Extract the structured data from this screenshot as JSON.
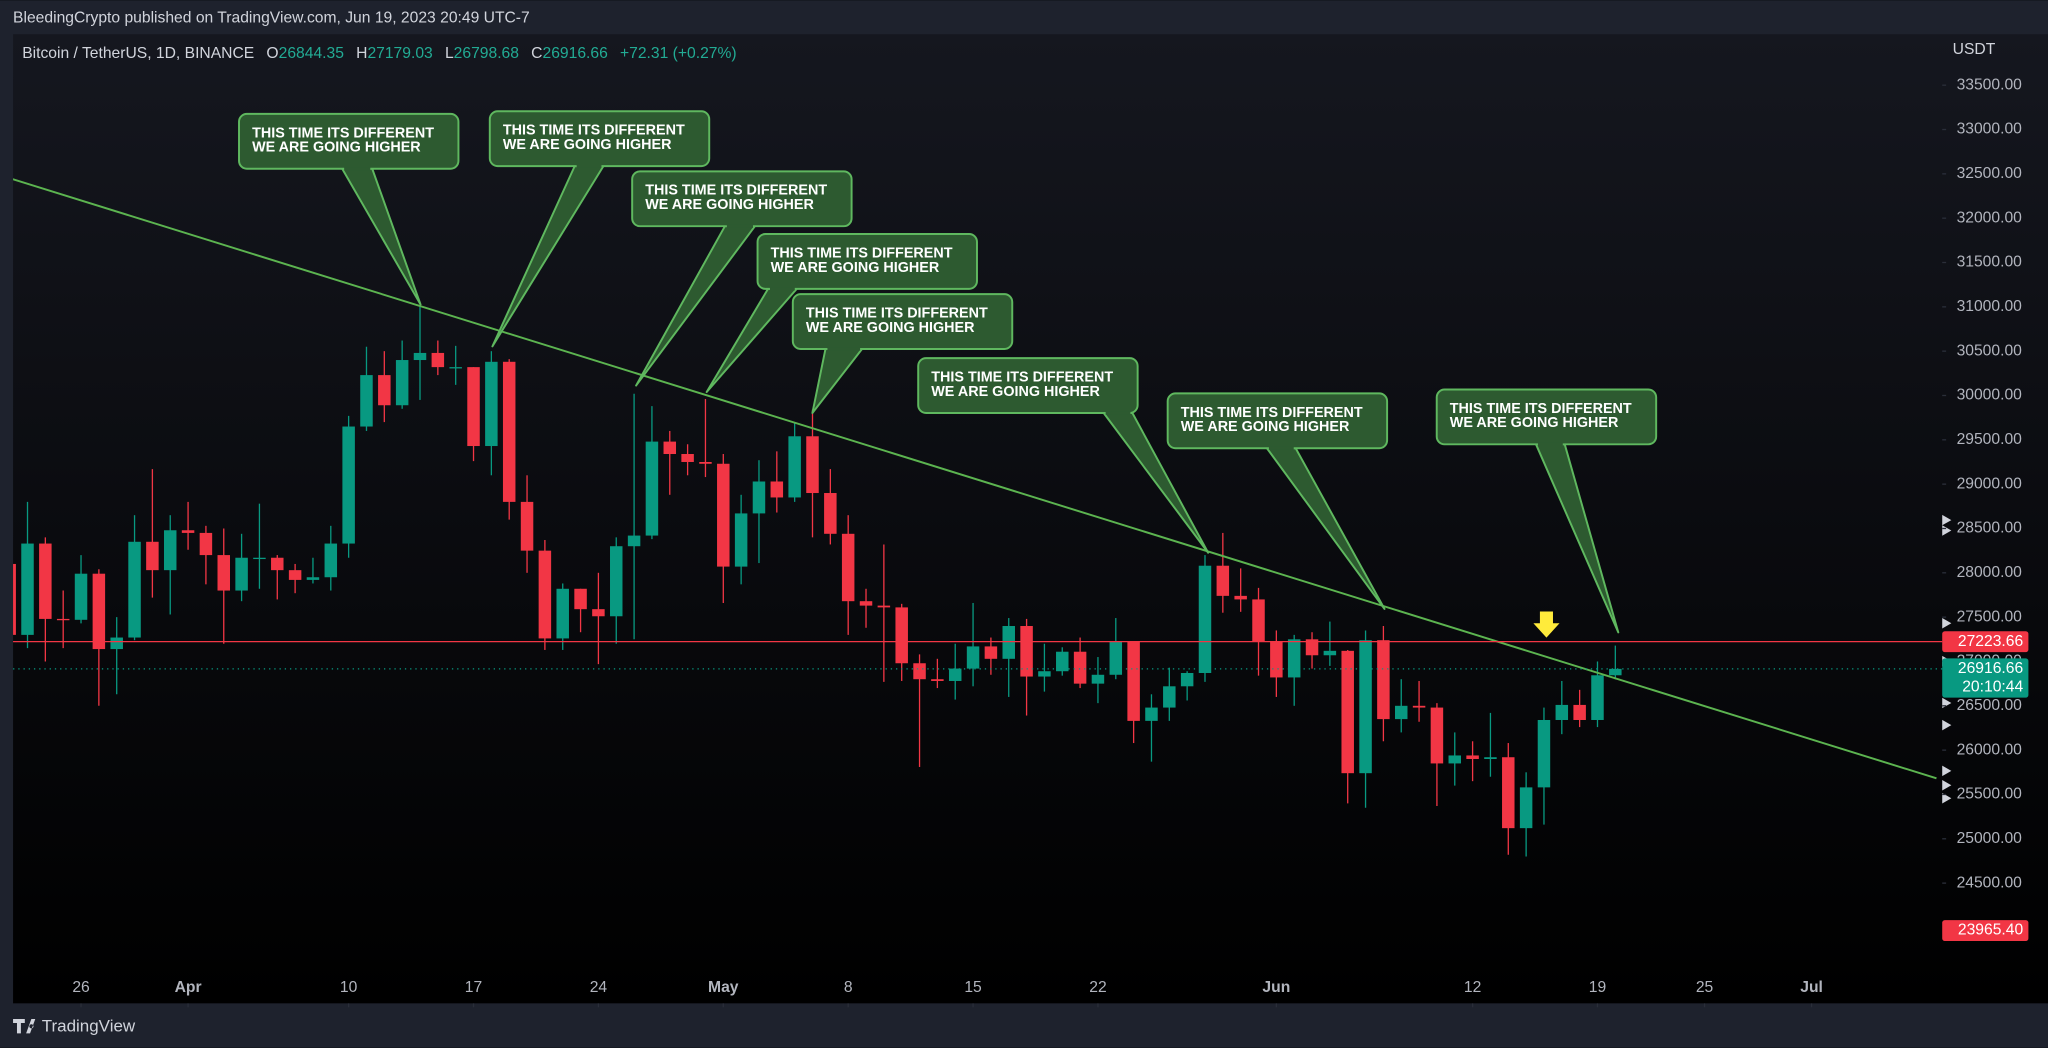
{
  "chart_data": {
    "type": "candlestick",
    "publisher": "BleedingCrypto published on TradingView.com, Jun 19, 2023 20:49 UTC-7",
    "title": "Bitcoin / TetherUS, 1D, BINANCE",
    "legend_labels": {
      "open": "O",
      "high": "H",
      "low": "L",
      "close": "C"
    },
    "change": "+72.31 (+0.27%)",
    "y_axis_label": "USDT",
    "brand": "TradingView",
    "up_color": "#089981",
    "down_color": "#f23645",
    "grid": false,
    "x": [
      "2023-03-22",
      "2023-03-23",
      "2023-03-24",
      "2023-03-25",
      "2023-03-26",
      "2023-03-27",
      "2023-03-28",
      "2023-03-29",
      "2023-03-30",
      "2023-03-31",
      "2023-04-01",
      "2023-04-02",
      "2023-04-03",
      "2023-04-04",
      "2023-04-05",
      "2023-04-06",
      "2023-04-07",
      "2023-04-08",
      "2023-04-09",
      "2023-04-10",
      "2023-04-11",
      "2023-04-12",
      "2023-04-13",
      "2023-04-14",
      "2023-04-15",
      "2023-04-16",
      "2023-04-17",
      "2023-04-18",
      "2023-04-19",
      "2023-04-20",
      "2023-04-21",
      "2023-04-22",
      "2023-04-23",
      "2023-04-24",
      "2023-04-25",
      "2023-04-26",
      "2023-04-27",
      "2023-04-28",
      "2023-04-29",
      "2023-04-30",
      "2023-05-01",
      "2023-05-02",
      "2023-05-03",
      "2023-05-04",
      "2023-05-05",
      "2023-05-06",
      "2023-05-07",
      "2023-05-08",
      "2023-05-09",
      "2023-05-10",
      "2023-05-11",
      "2023-05-12",
      "2023-05-13",
      "2023-05-14",
      "2023-05-15",
      "2023-05-16",
      "2023-05-17",
      "2023-05-18",
      "2023-05-19",
      "2023-05-20",
      "2023-05-21",
      "2023-05-22",
      "2023-05-23",
      "2023-05-24",
      "2023-05-25",
      "2023-05-26",
      "2023-05-27",
      "2023-05-28",
      "2023-05-29",
      "2023-05-30",
      "2023-05-31",
      "2023-06-01",
      "2023-06-02",
      "2023-06-03",
      "2023-06-04",
      "2023-06-05",
      "2023-06-06",
      "2023-06-07",
      "2023-06-08",
      "2023-06-09",
      "2023-06-10",
      "2023-06-11",
      "2023-06-12",
      "2023-06-13",
      "2023-06-14",
      "2023-06-15",
      "2023-06-16",
      "2023-06-17",
      "2023-06-18",
      "2023-06-19",
      "2023-06-20"
    ],
    "open": [
      28100,
      27300,
      28330,
      27480,
      27470,
      27990,
      27140,
      27270,
      28350,
      28030,
      28480,
      28450,
      28200,
      27800,
      28170,
      28170,
      28030,
      27920,
      27950,
      28330,
      29650,
      30230,
      29890,
      30400,
      30480,
      30320,
      30320,
      29430,
      30380,
      28800,
      28250,
      27260,
      27820,
      27590,
      27510,
      28300,
      28420,
      29480,
      29340,
      29250,
      29230,
      28070,
      28670,
      29030,
      28850,
      29540,
      28900,
      28440,
      27680,
      27630,
      27610,
      26980,
      26800,
      26780,
      26920,
      27170,
      27030,
      27400,
      26830,
      26890,
      27110,
      26750,
      26850,
      27230,
      26330,
      26480,
      26720,
      26870,
      28080,
      27740,
      27700,
      27220,
      26820,
      27250,
      27070,
      27120,
      25740,
      27240,
      26350,
      26500,
      26480,
      25850,
      25940,
      25900,
      25920,
      25120,
      25580,
      26340,
      26510,
      26340,
      26844.35
    ],
    "high": [
      28850,
      28800,
      28400,
      27800,
      28200,
      28040,
      27500,
      28650,
      29170,
      28650,
      28800,
      28530,
      28500,
      28440,
      28780,
      28200,
      28100,
      28170,
      28530,
      29770,
      30550,
      30500,
      30620,
      31000,
      30620,
      30560,
      30320,
      30500,
      30410,
      29100,
      28370,
      27880,
      27820,
      28000,
      28400,
      30020,
      29880,
      29600,
      29450,
      29960,
      29340,
      28880,
      29270,
      29370,
      29700,
      29840,
      29170,
      28650,
      27820,
      28320,
      27650,
      27080,
      27030,
      27200,
      27660,
      27270,
      27490,
      27480,
      27200,
      27160,
      27270,
      27050,
      27490,
      27230,
      26630,
      26930,
      26890,
      28200,
      28450,
      28050,
      27830,
      27350,
      27300,
      27330,
      27450,
      27130,
      27350,
      27400,
      26800,
      26780,
      26530,
      26200,
      26100,
      26420,
      26080,
      25750,
      26480,
      26780,
      26680,
      27000,
      27179.03
    ],
    "low": [
      26600,
      27150,
      27000,
      27150,
      27430,
      26500,
      26630,
      27240,
      27720,
      27530,
      28260,
      27870,
      27200,
      27680,
      27820,
      27700,
      27770,
      27880,
      27800,
      28170,
      29600,
      29700,
      29850,
      29950,
      30230,
      30120,
      29260,
      29100,
      28600,
      28000,
      27130,
      27130,
      27330,
      26970,
      27200,
      27250,
      28380,
      28880,
      29100,
      29080,
      27660,
      27870,
      28110,
      28680,
      28800,
      28400,
      28320,
      27300,
      27380,
      26770,
      26780,
      25810,
      26700,
      26570,
      26720,
      26850,
      26600,
      26390,
      26660,
      26840,
      26700,
      26530,
      26800,
      26080,
      25870,
      26330,
      26560,
      26770,
      27550,
      27560,
      26840,
      26600,
      26500,
      26920,
      26950,
      25400,
      25350,
      26100,
      26200,
      26320,
      25370,
      25600,
      25650,
      25700,
      24820,
      24800,
      25160,
      26180,
      26260,
      26260,
      26798.68
    ],
    "close": [
      27300,
      28330,
      27480,
      27470,
      27990,
      27140,
      27270,
      28350,
      28030,
      28480,
      28450,
      28200,
      27800,
      28170,
      28170,
      28030,
      27920,
      27950,
      28330,
      29650,
      30230,
      29890,
      30400,
      30480,
      30320,
      30320,
      29430,
      30380,
      28800,
      28250,
      27260,
      27820,
      27590,
      27510,
      28300,
      28420,
      29480,
      29340,
      29250,
      29230,
      28070,
      28670,
      29030,
      28850,
      29540,
      28900,
      28440,
      27680,
      27630,
      27610,
      26980,
      26800,
      26780,
      26920,
      27170,
      27030,
      27400,
      26830,
      26890,
      27110,
      26750,
      26850,
      27230,
      26330,
      26480,
      26720,
      26870,
      28080,
      27740,
      27700,
      27220,
      26820,
      27250,
      27070,
      27120,
      25740,
      27240,
      26350,
      26500,
      26480,
      25850,
      25940,
      25900,
      25920,
      25120,
      25580,
      26340,
      26510,
      26340,
      26844.35,
      26916.66
    ],
    "xlim": [
      "2023-03-22",
      "2023-07-08"
    ],
    "xticks": [
      {
        "value": "2023-03-26",
        "label": "26"
      },
      {
        "value": "2023-04-01",
        "label": "Apr"
      },
      {
        "value": "2023-04-10",
        "label": "10"
      },
      {
        "value": "2023-04-17",
        "label": "17"
      },
      {
        "value": "2023-04-24",
        "label": "24"
      },
      {
        "value": "2023-05-01",
        "label": "May"
      },
      {
        "value": "2023-05-08",
        "label": "8"
      },
      {
        "value": "2023-05-15",
        "label": "15"
      },
      {
        "value": "2023-05-22",
        "label": "22"
      },
      {
        "value": "2023-06-01",
        "label": "Jun"
      },
      {
        "value": "2023-06-12",
        "label": "12"
      },
      {
        "value": "2023-06-19",
        "label": "19"
      },
      {
        "value": "2023-06-25",
        "label": "25"
      },
      {
        "value": "2023-07-01",
        "label": "Jul"
      }
    ],
    "ylim": [
      23144,
      34075
    ],
    "yticks": [
      {
        "value": 24500,
        "label": "24500.00"
      },
      {
        "value": 25000,
        "label": "25000.00"
      },
      {
        "value": 25500,
        "label": "25500.00"
      },
      {
        "value": 26000,
        "label": "26000.00"
      },
      {
        "value": 26500,
        "label": "26500.00"
      },
      {
        "value": 27000,
        "label": "27000.00"
      },
      {
        "value": 27500,
        "label": "27500.00"
      },
      {
        "value": 28000,
        "label": "28000.00"
      },
      {
        "value": 28500,
        "label": "28500.00"
      },
      {
        "value": 29000,
        "label": "29000.00"
      },
      {
        "value": 29500,
        "label": "29500.00"
      },
      {
        "value": 30000,
        "label": "30000.00"
      },
      {
        "value": 30500,
        "label": "30500.00"
      },
      {
        "value": 31000,
        "label": "31000.00"
      },
      {
        "value": 31500,
        "label": "31500.00"
      },
      {
        "value": 32000,
        "label": "32000.00"
      },
      {
        "value": 32500,
        "label": "32500.00"
      },
      {
        "value": 33000,
        "label": "33000.00"
      },
      {
        "value": 33500,
        "label": "33500.00"
      }
    ],
    "trendline": {
      "color": "#5cb450",
      "x": [
        "2023-03-22",
        "2023-07-08"
      ],
      "values": [
        32451,
        25682
      ]
    },
    "hline": {
      "value": 27223.66,
      "color": "#f23645"
    },
    "countdown": "20:10:44",
    "low_marker": {
      "value": 23965.4,
      "label": "23965.40"
    },
    "annotations": [
      {
        "text": [
          "THIS TIME ITS DIFFERENT",
          "WE ARE GOING HIGHER"
        ]
      },
      {
        "text": [
          "THIS TIME ITS DIFFERENT",
          "WE ARE GOING HIGHER"
        ]
      },
      {
        "text": [
          "THIS TIME ITS DIFFERENT",
          "WE ARE GOING HIGHER"
        ]
      },
      {
        "text": [
          "THIS TIME ITS DIFFERENT",
          "WE ARE GOING HIGHER"
        ]
      },
      {
        "text": [
          "THIS TIME ITS DIFFERENT",
          "WE ARE GOING HIGHER"
        ]
      },
      {
        "text": [
          "THIS TIME ITS DIFFERENT",
          "WE ARE GOING HIGHER"
        ]
      },
      {
        "text": [
          "THIS TIME ITS DIFFERENT",
          "WE ARE GOING HIGHER"
        ]
      },
      {
        "text": [
          "THIS TIME ITS DIFFERENT",
          "WE ARE GOING HIGHER"
        ]
      }
    ]
  }
}
